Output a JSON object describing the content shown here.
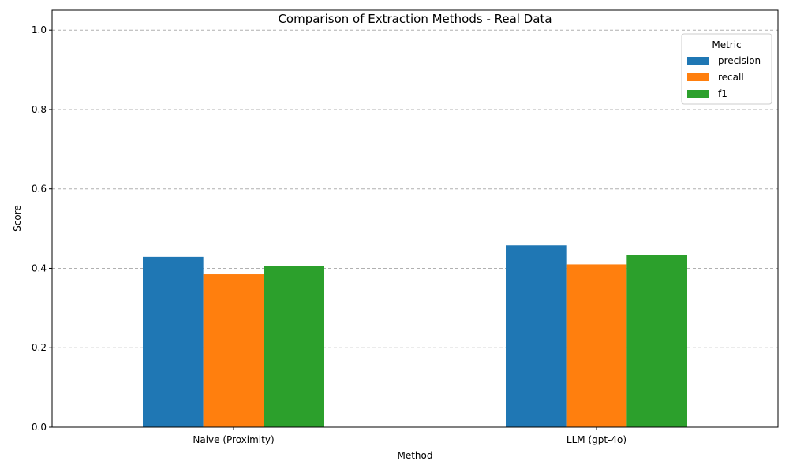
{
  "chart_data": {
    "type": "bar",
    "title": "Comparison of Extraction Methods - Real Data",
    "xlabel": "Method",
    "ylabel": "Score",
    "categories": [
      "Naive (Proximity)",
      "LLM (gpt-4o)"
    ],
    "series": [
      {
        "name": "precision",
        "color": "#1f77b4",
        "values": [
          0.429,
          0.458
        ]
      },
      {
        "name": "recall",
        "color": "#ff7f0e",
        "values": [
          0.385,
          0.41
        ]
      },
      {
        "name": "f1",
        "color": "#2ca02c",
        "values": [
          0.405,
          0.433
        ]
      }
    ],
    "ylim": [
      0,
      1.05
    ],
    "yticks": [
      0.0,
      0.2,
      0.4,
      0.6,
      0.8,
      1.0
    ],
    "ytick_labels": [
      "0.0",
      "0.2",
      "0.4",
      "0.6",
      "0.8",
      "1.0"
    ],
    "grid": "y-dashed",
    "legend": {
      "title": "Metric",
      "position": "top-right"
    }
  }
}
